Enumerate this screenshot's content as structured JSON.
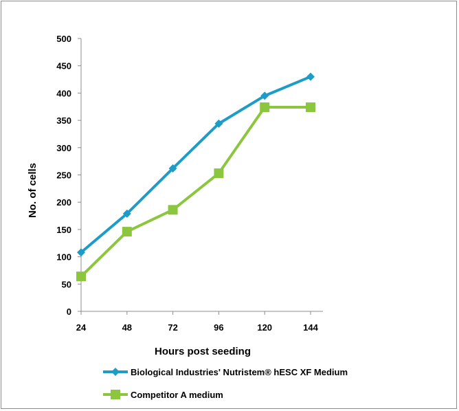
{
  "chart_data": {
    "type": "line",
    "x": [
      24,
      48,
      72,
      96,
      120,
      144
    ],
    "x_tick_labels": [
      "24",
      "48",
      "72",
      "96",
      "120",
      "144"
    ],
    "y_tick_labels": [
      "0",
      "50",
      "100",
      "150",
      "200",
      "250",
      "300",
      "350",
      "400",
      "450",
      "500"
    ],
    "xlabel": "Hours post seeding",
    "ylabel": "No. of cells",
    "ylim": [
      0,
      500
    ],
    "grid": false,
    "legend_position": "bottom",
    "series": [
      {
        "name": "Biological Industries' Nutristem® hESC XF Medium",
        "color": "#1e9cc8",
        "marker": "diamond",
        "values": [
          108,
          179,
          262,
          344,
          395,
          430
        ]
      },
      {
        "name": "Competitor A medium",
        "color": "#8cc63f",
        "marker": "square",
        "values": [
          64,
          146,
          186,
          253,
          374,
          374
        ]
      }
    ]
  }
}
